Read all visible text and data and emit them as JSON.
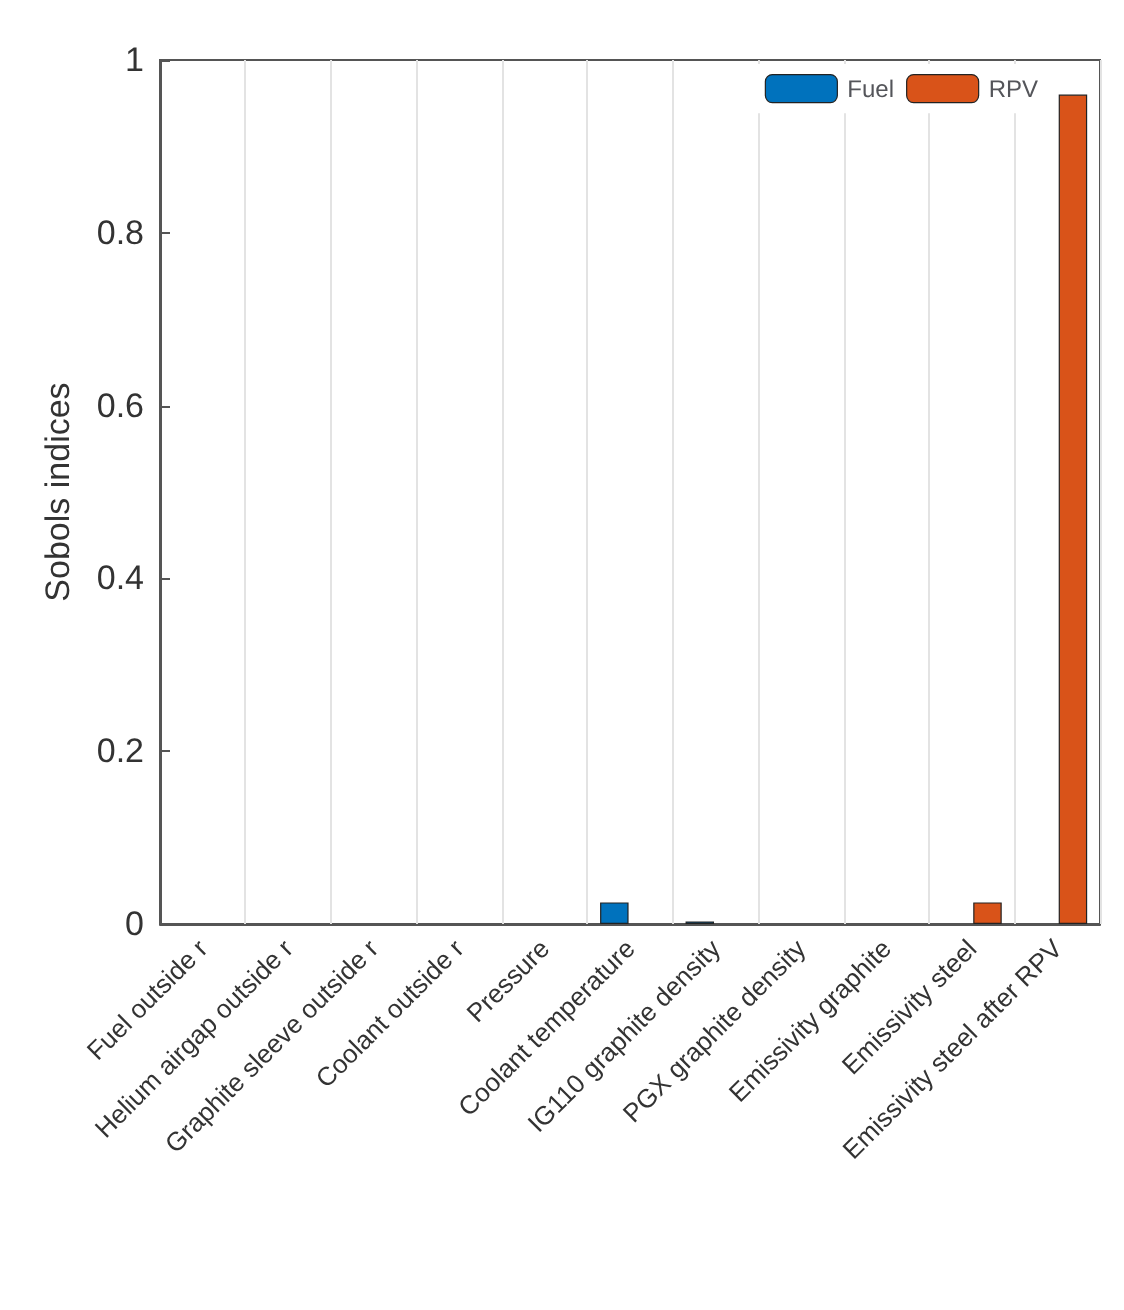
{
  "chart_data": {
    "type": "bar",
    "ylabel": "Sobols indices",
    "categories": [
      "Fuel outside r",
      "Helium airgap outside r",
      "Graphite sleeve outside r",
      "Coolant outside r",
      "Pressure",
      "Coolant temperature",
      "IG110 graphite density",
      "PGX graphite density",
      "Emissivity graphite",
      "Emissivity steel",
      "Emissivity steel after RPV"
    ],
    "series": [
      {
        "name": "Fuel",
        "color": "#0072bd",
        "values": [
          null,
          null,
          null,
          null,
          null,
          0.025,
          0.003,
          null,
          null,
          null,
          null
        ]
      },
      {
        "name": "RPV",
        "color": "#d95319",
        "values": [
          null,
          null,
          null,
          null,
          null,
          null,
          null,
          null,
          null,
          0.025,
          0.96
        ]
      }
    ],
    "ylim": [
      0,
      1
    ],
    "yticks": [
      0,
      0.2,
      0.4,
      0.6,
      0.8,
      1
    ],
    "grid": "x",
    "legend": "top right"
  }
}
